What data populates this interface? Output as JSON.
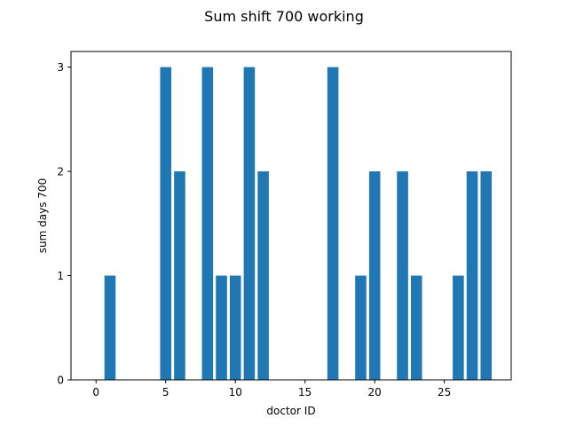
{
  "chart_data": {
    "type": "bar",
    "title": "Sum shift 700 working",
    "xlabel": "doctor ID",
    "ylabel": "sum days 700",
    "x": [
      1,
      5,
      6,
      8,
      9,
      10,
      11,
      12,
      17,
      19,
      20,
      22,
      23,
      26,
      27,
      28
    ],
    "values": [
      1,
      3,
      2,
      3,
      1,
      1,
      3,
      2,
      3,
      1,
      2,
      2,
      1,
      1,
      2,
      2
    ],
    "xlim": [
      -1.8,
      29.8
    ],
    "ylim": [
      0,
      3.15
    ],
    "xticks": [
      0,
      5,
      10,
      15,
      20,
      25
    ],
    "yticks": [
      0,
      1,
      2,
      3
    ],
    "bar_color": "#1f77b4",
    "grid": false
  }
}
